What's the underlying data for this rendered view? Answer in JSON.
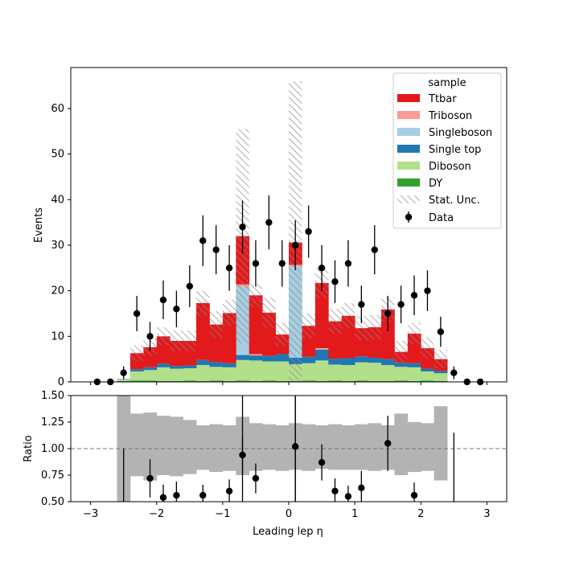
{
  "chart_data": {
    "type": "bar",
    "subtype": "stacked-histogram-with-ratio",
    "xlabel": "Leading lep η",
    "ylabel": "Events",
    "ratio_ylabel": "Ratio",
    "xlim": [
      -3.3,
      3.3
    ],
    "ylim": [
      0,
      69
    ],
    "ratio_ylim": [
      0.5,
      1.5
    ],
    "x_ticks": [
      -3,
      -2,
      -1,
      0,
      1,
      2,
      3
    ],
    "x_tick_labels": [
      "−3",
      "−2",
      "−1",
      "0",
      "1",
      "2",
      "3"
    ],
    "y_ticks": [
      0,
      10,
      20,
      30,
      40,
      50,
      60
    ],
    "y_tick_labels": [
      "0",
      "10",
      "20",
      "30",
      "40",
      "50",
      "60"
    ],
    "ratio_ticks": [
      0.5,
      0.75,
      1.0,
      1.25,
      1.5
    ],
    "ratio_tick_labels": [
      "0.50",
      "0.75",
      "1.00",
      "1.25",
      "1.50"
    ],
    "ratio_reference": 1.0,
    "bin_edges": [
      -2.6,
      -2.4,
      -2.2,
      -2.0,
      -1.8,
      -1.6,
      -1.4,
      -1.2,
      -1.0,
      -0.8,
      -0.6,
      -0.4,
      -0.2,
      0.0,
      0.2,
      0.4,
      0.6,
      0.8,
      1.0,
      1.2,
      1.4,
      1.6,
      1.8,
      2.0,
      2.2,
      2.4
    ],
    "legend": {
      "title": "sample",
      "placement": "top-right",
      "entries": [
        "Ttbar",
        "Triboson",
        "Singleboson",
        "Single top",
        "Diboson",
        "DY",
        "Stat. Unc.",
        "Data"
      ]
    },
    "stack_series": [
      {
        "name": "DY",
        "color": "#33a02c",
        "values": [
          0.2,
          0.3,
          0.3,
          0.2,
          0.2,
          0.3,
          0.2,
          0.3,
          0.2,
          0.3,
          0.2,
          0.3,
          0.2,
          0.2,
          0.3,
          0.2,
          0.3,
          0.2,
          0.3,
          0.2,
          0.2,
          0.3,
          0.2,
          0.3,
          0.2
        ]
      },
      {
        "name": "Diboson",
        "color": "#b2df8a",
        "values": [
          0.3,
          2.0,
          2.3,
          3.0,
          2.7,
          2.7,
          3.5,
          3.0,
          3.0,
          4.5,
          4.5,
          4.2,
          4.3,
          3.7,
          3.8,
          4.5,
          3.5,
          3.5,
          4.0,
          4.0,
          3.5,
          3.0,
          3.0,
          2.0,
          1.7
        ]
      },
      {
        "name": "Single top",
        "color": "#1f78b4",
        "values": [
          0.1,
          0.5,
          0.6,
          0.8,
          0.6,
          0.6,
          1.1,
          1.0,
          0.9,
          1.1,
          1.1,
          1.2,
          1.6,
          1.4,
          1.4,
          2.4,
          1.3,
          1.5,
          1.3,
          1.1,
          1.3,
          0.9,
          0.9,
          0.6,
          0.5
        ]
      },
      {
        "name": "Singleboson",
        "color": "#a6cee3",
        "values": [
          0,
          0,
          0,
          0,
          0,
          0,
          0,
          0,
          0,
          15.0,
          0,
          0,
          0,
          20.0,
          0,
          0,
          0,
          0,
          0,
          0,
          0,
          0,
          0,
          0,
          0
        ]
      },
      {
        "name": "Triboson",
        "color": "#fb9a99",
        "values": [
          0,
          0,
          0,
          0,
          0,
          0,
          0,
          0,
          0,
          0.5,
          0.3,
          0,
          0,
          0.4,
          0,
          0.3,
          0,
          0,
          0,
          0,
          0,
          0,
          0,
          0,
          0
        ]
      },
      {
        "name": "Ttbar",
        "color": "#e31a1c",
        "values": [
          0,
          3.5,
          4.4,
          6.0,
          5.5,
          5.4,
          12.5,
          8.3,
          11.0,
          10.6,
          12.9,
          9.5,
          4.3,
          4.9,
          6.8,
          14.3,
          8.2,
          9.3,
          6.2,
          6.7,
          10.9,
          2.4,
          6.5,
          4.5,
          2.6
        ]
      }
    ],
    "mc_total": [
      0.6,
      6.3,
      7.6,
      10.0,
      9.0,
      9.0,
      17.3,
      12.6,
      15.1,
      32.0,
      19.0,
      15.2,
      10.4,
      30.6,
      12.3,
      21.7,
      13.3,
      14.5,
      11.8,
      12.0,
      15.9,
      6.6,
      10.6,
      7.4,
      5.0
    ],
    "stat_unc_up": [
      0.6,
      8.0,
      9.5,
      12.0,
      11.3,
      11.3,
      20.0,
      15.5,
      18.0,
      55.5,
      21.5,
      18.5,
      13.0,
      66.0,
      15.0,
      25.0,
      16.0,
      17.3,
      14.5,
      14.7,
      18.5,
      9.0,
      13.0,
      9.8,
      7.0
    ],
    "stat_unc_down": [
      0.6,
      4.6,
      5.7,
      8.0,
      6.7,
      6.7,
      14.6,
      9.7,
      12.2,
      8.5,
      16.5,
      11.9,
      7.8,
      0.0,
      9.6,
      18.4,
      10.6,
      11.7,
      9.1,
      9.3,
      13.3,
      4.2,
      8.2,
      5.0,
      3.0
    ],
    "data": {
      "name": "Data",
      "x": [
        -2.9,
        -2.7,
        -2.5,
        -2.3,
        -2.1,
        -1.9,
        -1.7,
        -1.5,
        -1.3,
        -1.1,
        -0.9,
        -0.7,
        -0.5,
        -0.3,
        -0.1,
        0.1,
        0.3,
        0.5,
        0.7,
        0.9,
        1.1,
        1.3,
        1.5,
        1.7,
        1.9,
        2.1,
        2.3,
        2.5,
        2.7,
        2.9
      ],
      "y": [
        0,
        0,
        2,
        15,
        10,
        18,
        16,
        21,
        31,
        29,
        25,
        34,
        26,
        35,
        26,
        30,
        33,
        25,
        22,
        26,
        17,
        29,
        15,
        17,
        19,
        20,
        11,
        2,
        0,
        0
      ]
    },
    "ratio": {
      "x": [
        -2.1,
        -1.9,
        -1.7,
        -1.3,
        -0.9,
        -0.7,
        -0.5,
        0.1,
        0.5,
        0.7,
        0.9,
        1.1,
        1.5,
        1.9
      ],
      "y": [
        0.72,
        0.54,
        0.56,
        0.56,
        0.6,
        0.94,
        0.72,
        1.02,
        0.87,
        0.6,
        0.55,
        0.63,
        1.05,
        0.56
      ],
      "err": [
        0.18,
        0.12,
        0.13,
        0.1,
        0.11,
        0.17,
        0.14,
        0.7,
        0.17,
        0.12,
        0.1,
        0.16,
        0.26,
        0.12
      ]
    },
    "ratio_band": {
      "up": [
        1.5,
        1.33,
        1.34,
        1.31,
        1.3,
        1.27,
        1.22,
        1.23,
        1.22,
        1.3,
        1.24,
        1.23,
        1.22,
        1.24,
        1.23,
        1.22,
        1.23,
        1.22,
        1.23,
        1.24,
        1.22,
        1.33,
        1.25,
        1.24,
        1.4
      ],
      "down": [
        0.5,
        0.74,
        0.7,
        0.75,
        0.74,
        0.76,
        0.8,
        0.78,
        0.79,
        0.75,
        0.79,
        0.8,
        0.79,
        0.8,
        0.79,
        0.81,
        0.8,
        0.8,
        0.8,
        0.79,
        0.8,
        0.75,
        0.78,
        0.79,
        0.7
      ]
    },
    "ratio_full_errbars": [
      {
        "x": -2.5,
        "low": 0.5,
        "high": 1.0
      },
      {
        "x": -0.7,
        "low": 0.5,
        "high": 1.5
      },
      {
        "x": 0.1,
        "low": 0.5,
        "high": 1.5
      },
      {
        "x": 2.5,
        "low": 0.5,
        "high": 1.15
      }
    ]
  }
}
